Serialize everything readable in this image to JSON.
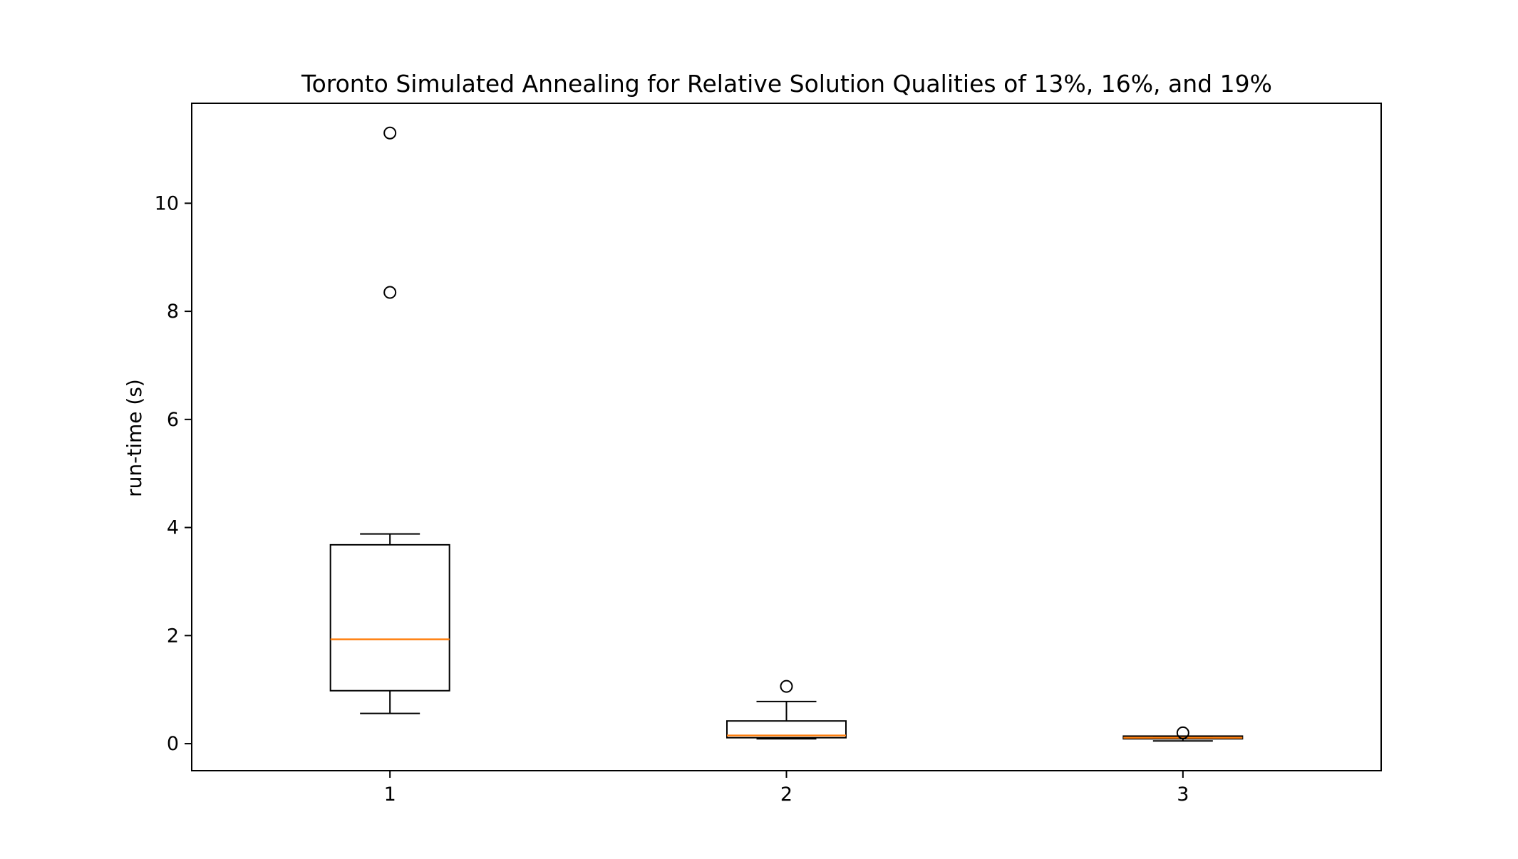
{
  "chart_data": {
    "type": "box",
    "title": "Toronto Simulated Annealing for Relative Solution Qualities of 13%, 16%, and 19%",
    "xlabel": "",
    "ylabel": "run-time (s)",
    "categories": [
      "1",
      "2",
      "3"
    ],
    "y_ticks": [
      "0",
      "2",
      "4",
      "6",
      "8",
      "10"
    ],
    "ylim": [
      -0.5,
      11.85
    ],
    "xlim": [
      0.5,
      3.5
    ],
    "grid": false,
    "boxes": [
      {
        "category": "1",
        "whisker_low": 0.56,
        "q1": 0.98,
        "median": 1.93,
        "q3": 3.68,
        "whisker_high": 3.88,
        "outliers": [
          8.35,
          11.3
        ]
      },
      {
        "category": "2",
        "whisker_low": 0.09,
        "q1": 0.11,
        "median": 0.15,
        "q3": 0.42,
        "whisker_high": 0.78,
        "outliers": [
          1.06
        ]
      },
      {
        "category": "3",
        "whisker_low": 0.05,
        "q1": 0.09,
        "median": 0.11,
        "q3": 0.14,
        "whisker_high": 0.14,
        "outliers": [
          0.2
        ]
      }
    ],
    "colors": {
      "box": "#000000",
      "median": "#ff7f0e",
      "background": "#ffffff"
    }
  }
}
